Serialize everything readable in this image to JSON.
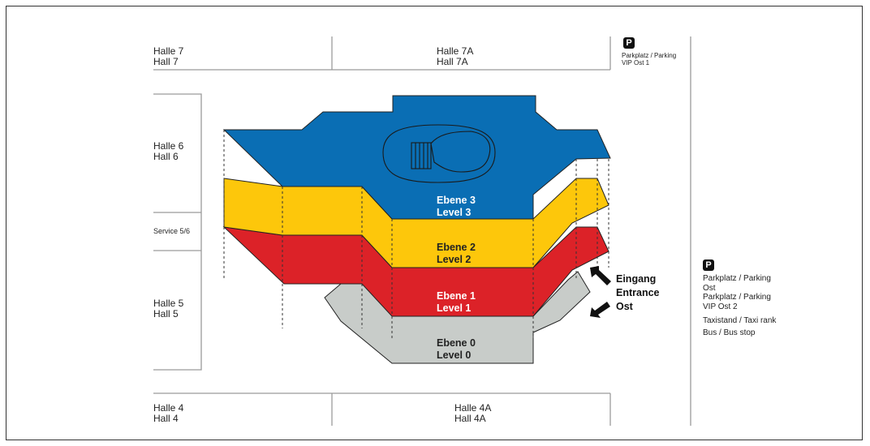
{
  "halls": {
    "h7": {
      "de": "Halle 7",
      "en": "Hall 7"
    },
    "h7a": {
      "de": "Halle 7A",
      "en": "Hall 7A"
    },
    "h6": {
      "de": "Halle 6",
      "en": "Hall 6"
    },
    "service": "Service 5/6",
    "h5": {
      "de": "Halle 5",
      "en": "Hall 5"
    },
    "h4": {
      "de": "Halle 4",
      "en": "Hall 4"
    },
    "h4a": {
      "de": "Halle 4A",
      "en": "Hall 4A"
    }
  },
  "parking_icon": "P",
  "parking_top": {
    "line1": "Parkplatz / Parking",
    "line2": "VIP Ost 1"
  },
  "right_panel": {
    "p1_line1": "Parkplatz / Parking",
    "p1_line2": "Ost",
    "p2_line1": "Parkplatz / Parking",
    "p2_line2": "VIP Ost 2",
    "taxi": "Taxistand / Taxi rank",
    "bus": "Bus / Bus stop"
  },
  "levels": [
    {
      "de": "Ebene 3",
      "en": "Level 3",
      "color": "#0a6eb4",
      "text_color": "#ffffff"
    },
    {
      "de": "Ebene 2",
      "en": "Level 2",
      "color": "#fdc70b",
      "text_color": "#222222"
    },
    {
      "de": "Ebene 1",
      "en": "Level 1",
      "color": "#dc2228",
      "text_color": "#ffffff"
    },
    {
      "de": "Ebene 0",
      "en": "Level 0",
      "color": "#c8ccc9",
      "text_color": "#222222"
    }
  ],
  "entrance": {
    "de": "Eingang",
    "en": "Entrance",
    "name": "Ost"
  },
  "icons": [
    "parking-icon",
    "entrance-arrow-icon"
  ]
}
